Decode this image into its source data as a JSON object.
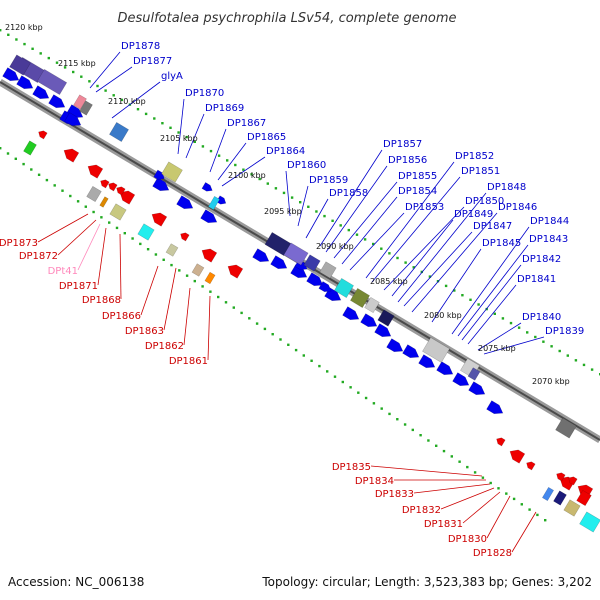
{
  "header": {
    "title": "Desulfotalea psychrophila LSv54, complete genome"
  },
  "footer": {
    "accession": "Accession: NC_006138",
    "info": "Topology: circular; Length: 3,523,383 bp; Genes: 3,202"
  },
  "scale_labels": [
    "2120 kbp",
    "2115 kbp",
    "2110 kbp",
    "2105 kbp",
    "2100 kbp",
    "2095 kbp",
    "2090 kbp",
    "2085 kbp",
    "2080 kbp",
    "2075 kbp",
    "2070 kbp"
  ],
  "forward_labels": [
    "DP1878",
    "DP1877",
    "glyA",
    "DP1870",
    "DP1869",
    "DP1867",
    "DP1865",
    "DP1864",
    "DP1860",
    "DP1859",
    "DP1858",
    "DP1857",
    "DP1856",
    "DP1855",
    "DP1854",
    "DP1853",
    "DP1852",
    "DP1851",
    "DP1850",
    "DP1849",
    "DP1848",
    "DP1847",
    "DP1846",
    "DP1845",
    "DP1844",
    "DP1843",
    "DP1842",
    "DP1841",
    "DP1840",
    "DP1839"
  ],
  "reverse_labels": [
    "DP1873",
    "DP1872",
    "DPt41",
    "DP1871",
    "DP1868",
    "DP1866",
    "DP1863",
    "DP1862",
    "DP1861",
    "DP1835",
    "DP1834",
    "DP1833",
    "DP1832",
    "DP1831",
    "DP1830",
    "DP1828"
  ],
  "colors": {
    "forward_label": "#0000cc",
    "reverse_label": "#cc0000",
    "trna_label": "#ff88bb",
    "backbone": "#555555",
    "tick": "#22aa22",
    "cds_forward": "#0000ee",
    "cds_reverse": "#ee0000"
  }
}
